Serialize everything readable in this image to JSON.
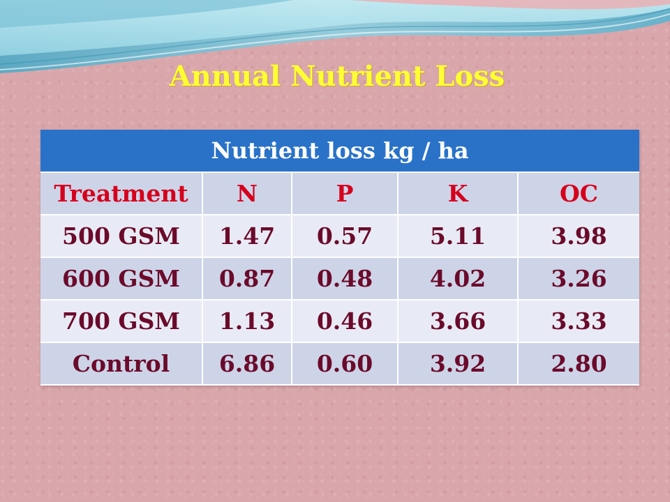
{
  "title": "Annual Nutrient Loss",
  "table": {
    "caption": "Nutrient loss kg  / ha",
    "columns": [
      "Treatment",
      "N",
      "P",
      "K",
      "OC"
    ],
    "rows": [
      [
        "500 GSM",
        "1.47",
        "0.57",
        "5.11",
        "3.98"
      ],
      [
        "600 GSM",
        "0.87",
        "0.48",
        "4.02",
        "3.26"
      ],
      [
        "700 GSM",
        "1.13",
        "0.46",
        "3.66",
        "3.33"
      ],
      [
        "Control",
        "6.86",
        "0.60",
        "3.92",
        "2.80"
      ]
    ]
  },
  "colors": {
    "title": "#ffff33",
    "header_bg": "#2a72c8",
    "column_header_text": "#d6001c",
    "cell_text": "#6b0a2a",
    "background": "#d9a6ab"
  }
}
